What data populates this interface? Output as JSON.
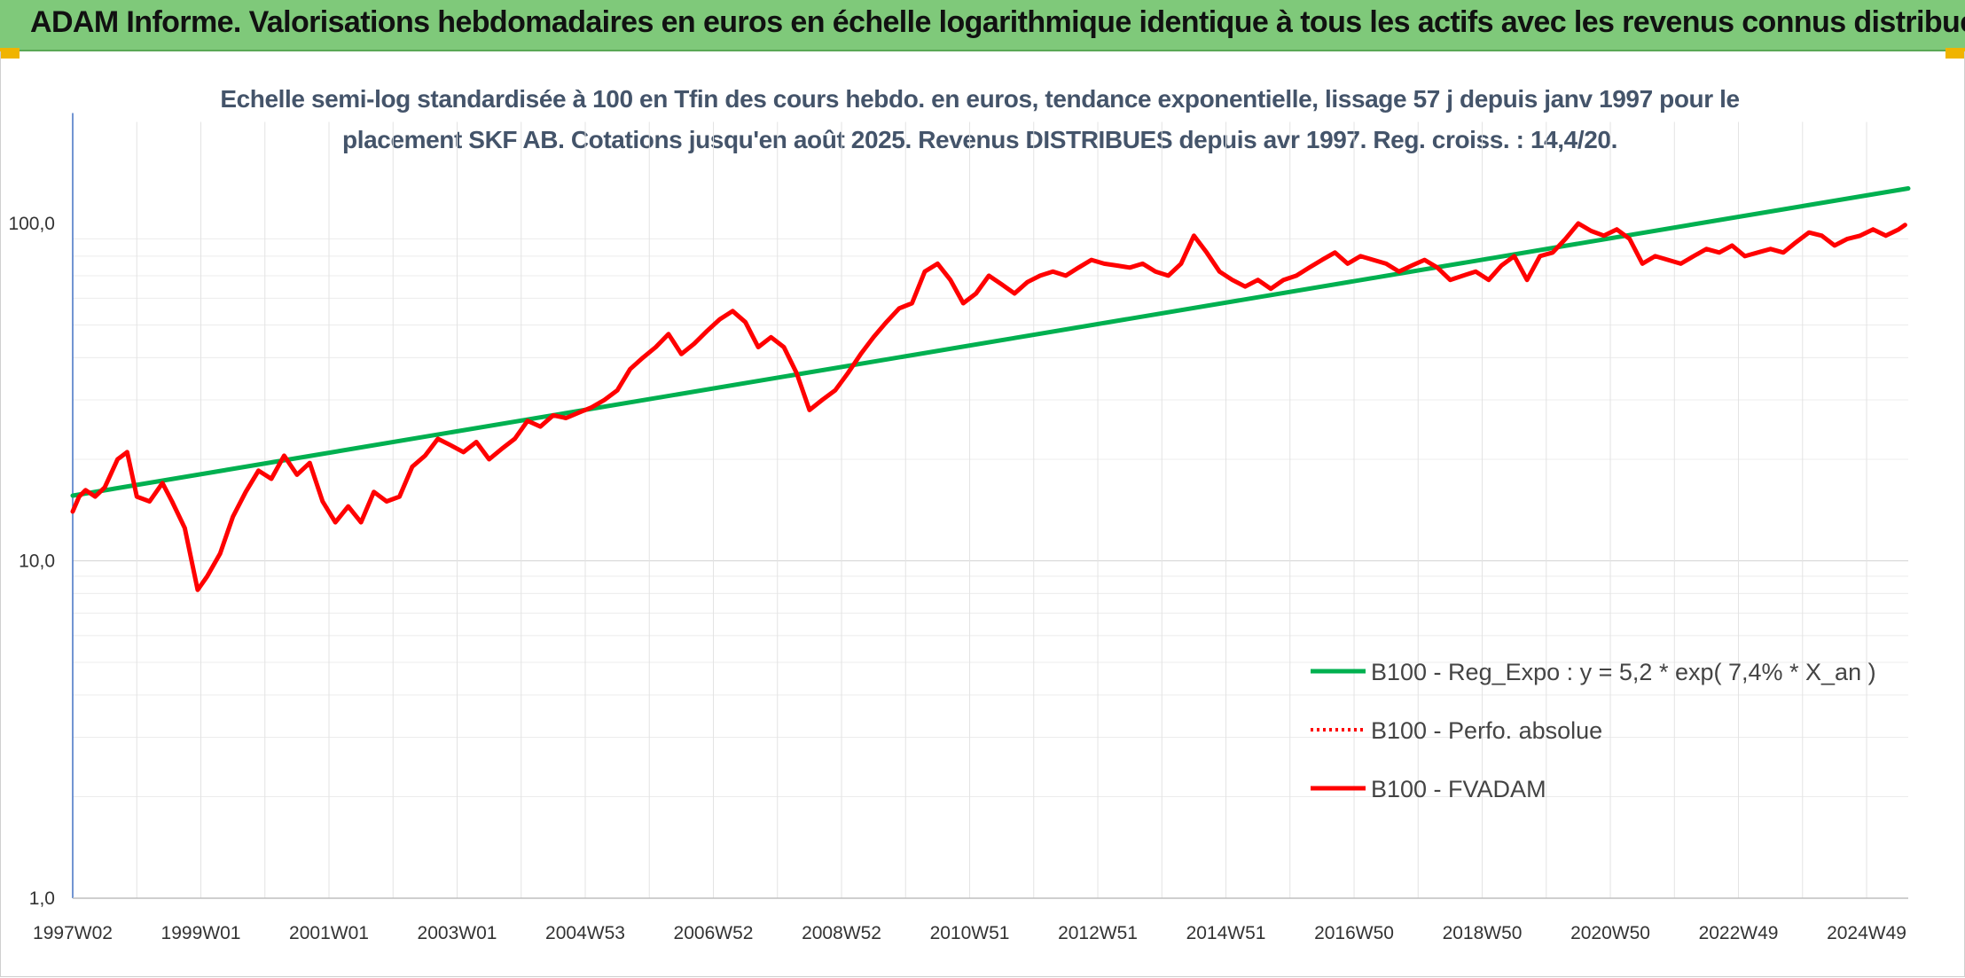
{
  "header": {
    "title": "ADAM Informe. Valorisations hebdomadaires en euros en échelle logarithmique identique à tous les actifs avec les revenus connus distribués"
  },
  "chart_data": {
    "type": "line",
    "title_line1": "Echelle semi-log standardisée à 100 en Tfin des cours hebdo. en euros, tendance exponentielle, lissage 57 j depuis janv 1997 pour le",
    "title_line2": "placement SKF AB. Cotations jusqu'en août 2025. Revenus DISTRIBUES depuis avr 1997. Reg. croiss. : 14,4/20.",
    "y_scale": "log",
    "ylim": [
      1,
      200
    ],
    "y_ticks": [
      {
        "value": 1,
        "label": "1,0"
      },
      {
        "value": 10,
        "label": "10,0"
      },
      {
        "value": 100,
        "label": "100,0"
      }
    ],
    "xlim": [
      1997.0,
      2025.65
    ],
    "x_ticks": [
      {
        "value": 1997.0,
        "label": "1997W02"
      },
      {
        "value": 1999.0,
        "label": "1999W01"
      },
      {
        "value": 2001.0,
        "label": "2001W01"
      },
      {
        "value": 2003.0,
        "label": "2003W01"
      },
      {
        "value": 2005.0,
        "label": "2004W53"
      },
      {
        "value": 2007.0,
        "label": "2006W52"
      },
      {
        "value": 2009.0,
        "label": "2008W52"
      },
      {
        "value": 2011.0,
        "label": "2010W51"
      },
      {
        "value": 2013.0,
        "label": "2012W51"
      },
      {
        "value": 2015.0,
        "label": "2014W51"
      },
      {
        "value": 2017.0,
        "label": "2016W50"
      },
      {
        "value": 2019.0,
        "label": "2018W50"
      },
      {
        "value": 2021.0,
        "label": "2020W50"
      },
      {
        "value": 2023.0,
        "label": "2022W49"
      },
      {
        "value": 2025.0,
        "label": "2024W49"
      }
    ],
    "grid": {
      "vertical": true,
      "horizontal": true
    },
    "legend_position": "bottom-right",
    "series": [
      {
        "name": "B100 - Reg_Expo : y = 5,2 * exp( 7,4% *  X_an )",
        "color": "#00b050",
        "style": "solid",
        "x": [
          1997.0,
          2025.65
        ],
        "y": [
          15.6,
          127
        ]
      },
      {
        "name": "B100 - Perfo. absolue",
        "color": "#ff0000",
        "style": "dotted",
        "x": [],
        "y": []
      },
      {
        "name": "B100 - FVADAM",
        "color": "#ff0000",
        "style": "solid",
        "x": [
          1997.0,
          1997.1,
          1997.2,
          1997.35,
          1997.5,
          1997.7,
          1997.85,
          1998.0,
          1998.2,
          1998.4,
          1998.55,
          1998.75,
          1998.95,
          1999.1,
          1999.3,
          1999.5,
          1999.7,
          1999.9,
          2000.1,
          2000.3,
          2000.5,
          2000.7,
          2000.9,
          2001.1,
          2001.3,
          2001.5,
          2001.7,
          2001.9,
          2002.1,
          2002.3,
          2002.5,
          2002.7,
          2002.9,
          2003.1,
          2003.3,
          2003.5,
          2003.7,
          2003.9,
          2004.1,
          2004.3,
          2004.5,
          2004.7,
          2004.9,
          2005.1,
          2005.3,
          2005.5,
          2005.7,
          2005.9,
          2006.1,
          2006.3,
          2006.5,
          2006.7,
          2006.9,
          2007.1,
          2007.3,
          2007.5,
          2007.7,
          2007.9,
          2008.1,
          2008.3,
          2008.5,
          2008.7,
          2008.9,
          2009.1,
          2009.3,
          2009.5,
          2009.7,
          2009.9,
          2010.1,
          2010.3,
          2010.5,
          2010.7,
          2010.9,
          2011.1,
          2011.3,
          2011.5,
          2011.7,
          2011.9,
          2012.1,
          2012.3,
          2012.5,
          2012.7,
          2012.9,
          2013.1,
          2013.3,
          2013.5,
          2013.7,
          2013.9,
          2014.1,
          2014.3,
          2014.5,
          2014.7,
          2014.9,
          2015.1,
          2015.3,
          2015.5,
          2015.7,
          2015.9,
          2016.1,
          2016.3,
          2016.5,
          2016.7,
          2016.9,
          2017.1,
          2017.3,
          2017.5,
          2017.7,
          2017.9,
          2018.1,
          2018.3,
          2018.5,
          2018.7,
          2018.9,
          2019.1,
          2019.3,
          2019.5,
          2019.7,
          2019.9,
          2020.1,
          2020.3,
          2020.5,
          2020.7,
          2020.9,
          2021.1,
          2021.3,
          2021.5,
          2021.7,
          2021.9,
          2022.1,
          2022.3,
          2022.5,
          2022.7,
          2022.9,
          2023.1,
          2023.3,
          2023.5,
          2023.7,
          2023.9,
          2024.1,
          2024.3,
          2024.5,
          2024.7,
          2024.9,
          2025.1,
          2025.3,
          2025.5,
          2025.6
        ],
        "y": [
          14.0,
          15.5,
          16.2,
          15.5,
          16.5,
          20.0,
          21.0,
          15.5,
          15.0,
          17.0,
          15.0,
          12.5,
          8.2,
          9.0,
          10.5,
          13.5,
          16.0,
          18.5,
          17.5,
          20.5,
          18.0,
          19.5,
          15.0,
          13.0,
          14.5,
          13.0,
          16.0,
          15.0,
          15.5,
          19.0,
          20.5,
          23.0,
          22.0,
          21.0,
          22.5,
          20.0,
          21.5,
          23.0,
          26.0,
          25.0,
          27.0,
          26.5,
          27.5,
          28.5,
          30.0,
          32.0,
          37.0,
          40.0,
          43.0,
          47.0,
          41.0,
          44.0,
          48.0,
          52.0,
          55.0,
          51.0,
          43.0,
          46.0,
          43.0,
          36.0,
          28.0,
          30.0,
          32.0,
          36.0,
          41.0,
          46.0,
          51.0,
          56.0,
          58.0,
          72.0,
          76.0,
          68.0,
          58.0,
          62.0,
          70.0,
          66.0,
          62.0,
          67.0,
          70.0,
          72.0,
          70.0,
          74.0,
          78.0,
          76.0,
          75.0,
          74.0,
          76.0,
          72.0,
          70.0,
          76.0,
          92.0,
          82.0,
          72.0,
          68.0,
          65.0,
          68.0,
          64.0,
          68.0,
          70.0,
          74.0,
          78.0,
          82.0,
          76.0,
          80.0,
          78.0,
          76.0,
          72.0,
          75.0,
          78.0,
          74.0,
          68.0,
          70.0,
          72.0,
          68.0,
          75.0,
          80.0,
          68.0,
          80.0,
          82.0,
          90.0,
          100.0,
          95.0,
          92.0,
          96.0,
          90.0,
          76.0,
          80.0,
          78.0,
          76.0,
          80.0,
          84.0,
          82.0,
          86.0,
          80.0,
          82.0,
          84.0,
          82.0,
          88.0,
          94.0,
          92.0,
          86.0,
          90.0,
          92.0,
          96.0,
          92.0,
          96.0,
          99.0
        ]
      }
    ]
  }
}
